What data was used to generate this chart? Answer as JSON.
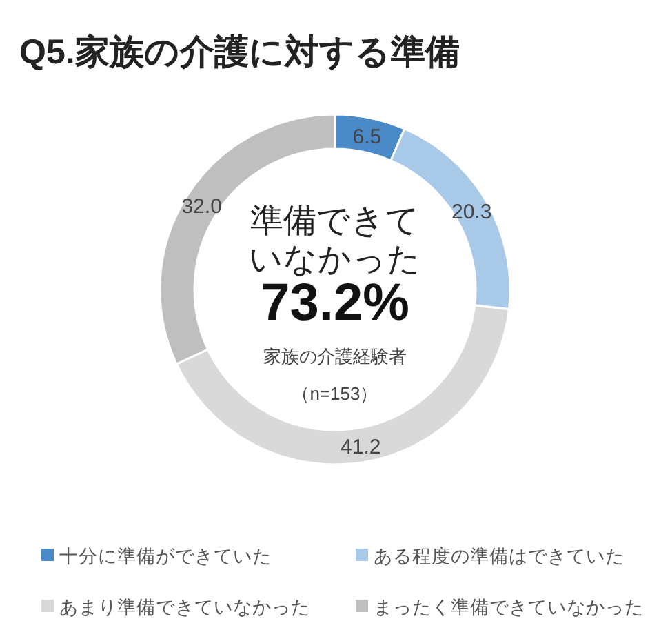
{
  "chart_data": {
    "type": "donut",
    "title": "Q5.家族の介護に対する準備",
    "categories": [
      "十分に準備ができていた",
      "ある程度の準備はできていた",
      "あまり準備できていなかった",
      "まったく準備できていなかった"
    ],
    "values": [
      6.5,
      20.3,
      41.2,
      32.0
    ],
    "colors": [
      "#4a8ac8",
      "#a9c9e8",
      "#d9d9d9",
      "#bfbfbf"
    ],
    "value_labels": [
      "6.5",
      "20.3",
      "41.2",
      "32.0"
    ],
    "annotations": [
      "準備できていなかった",
      "73.2%",
      "家族の介護経験者",
      "（n=153）"
    ],
    "legend": "bottom"
  }
}
